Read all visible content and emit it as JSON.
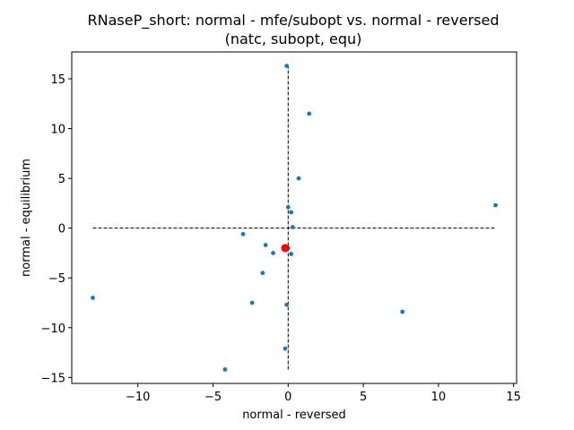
{
  "chart_data": {
    "type": "scatter",
    "title_line1": "RNaseP_short: normal - mfe/subopt vs. normal - reversed",
    "title_line2": "(natc, subopt, equ)",
    "xlabel": "normal - reversed",
    "ylabel": "normal - equilibrium",
    "xlim": [
      -14.4,
      15.2
    ],
    "ylim": [
      -15.6,
      17.7
    ],
    "xticks": [
      -10,
      -5,
      0,
      5,
      10,
      15
    ],
    "yticks": [
      -15,
      -10,
      -5,
      0,
      5,
      10,
      15
    ],
    "grid": false,
    "point_color": "#1f77b4",
    "highlight_color": "#ff0000",
    "points": [
      {
        "x": -0.1,
        "y": 16.3
      },
      {
        "x": 1.4,
        "y": 11.5
      },
      {
        "x": 0.7,
        "y": 5.0
      },
      {
        "x": 13.8,
        "y": 2.3
      },
      {
        "x": 0.0,
        "y": 2.1
      },
      {
        "x": 0.2,
        "y": 1.6
      },
      {
        "x": 0.3,
        "y": 0.1
      },
      {
        "x": -3.0,
        "y": -0.6
      },
      {
        "x": -1.5,
        "y": -1.7
      },
      {
        "x": 0.0,
        "y": -2.0
      },
      {
        "x": -1.0,
        "y": -2.5
      },
      {
        "x": 0.2,
        "y": -2.6
      },
      {
        "x": -1.7,
        "y": -4.5
      },
      {
        "x": -13.0,
        "y": -7.0
      },
      {
        "x": -2.4,
        "y": -7.5
      },
      {
        "x": -0.1,
        "y": -7.7
      },
      {
        "x": 7.6,
        "y": -8.4
      },
      {
        "x": -0.2,
        "y": -12.1
      },
      {
        "x": -4.2,
        "y": -14.2
      }
    ],
    "highlight_point": {
      "x": -0.2,
      "y": -2.0
    },
    "reference_lines": {
      "horizontal": {
        "y": 0,
        "x_from": -13.0,
        "x_to": 13.8
      },
      "vertical": {
        "x": 0,
        "y_from": -14.2,
        "y_to": 16.3
      }
    }
  }
}
